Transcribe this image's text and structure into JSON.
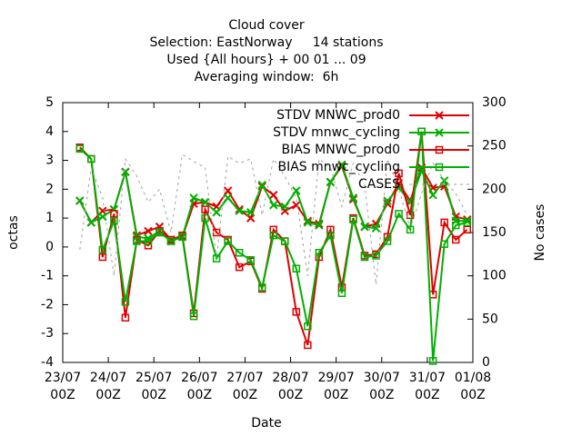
{
  "chart_data": {
    "type": "line",
    "title": [
      "Cloud cover",
      "Selection: EastNorway     14 stations",
      "Used {All hours} + 00 01 ... 09",
      "Averaging window:  6h"
    ],
    "xlabel": "Date",
    "ylabel": "octas",
    "y2label": "No cases",
    "x": [
      9,
      15,
      21,
      27,
      33,
      39,
      45,
      51,
      57,
      63,
      69,
      75,
      81,
      87,
      93,
      99,
      105,
      111,
      117,
      123,
      129,
      135,
      141,
      147,
      153,
      159,
      165,
      171,
      177,
      183,
      189,
      195,
      201,
      207,
      213
    ],
    "xlim": [
      0,
      216
    ],
    "xticks": [
      {
        "value": 0,
        "label": "23/07\n00Z"
      },
      {
        "value": 24,
        "label": "24/07\n00Z"
      },
      {
        "value": 48,
        "label": "25/07\n00Z"
      },
      {
        "value": 72,
        "label": "26/07\n00Z"
      },
      {
        "value": 96,
        "label": "27/07\n00Z"
      },
      {
        "value": 120,
        "label": "28/07\n00Z"
      },
      {
        "value": 144,
        "label": "29/07\n00Z"
      },
      {
        "value": 168,
        "label": "30/07\n00Z"
      },
      {
        "value": 192,
        "label": "31/07\n00Z"
      },
      {
        "value": 216,
        "label": "01/08\n00Z"
      }
    ],
    "ylim": [
      -4,
      5
    ],
    "yticks": [
      -4,
      -3,
      -2,
      -1,
      0,
      1,
      2,
      3,
      4,
      5
    ],
    "y2lim": [
      0,
      300
    ],
    "y2ticks": [
      0,
      50,
      100,
      150,
      200,
      250,
      300
    ],
    "grid": false,
    "legend": "top right",
    "series": [
      {
        "name": "STDV MNWC_prod0",
        "color": "#e00000",
        "marker": "x",
        "values": [
          1.6,
          0.85,
          1.25,
          1.3,
          2.6,
          0.4,
          0.55,
          0.7,
          0.25,
          0.35,
          1.5,
          1.55,
          1.4,
          1.95,
          1.3,
          1.0,
          2.1,
          1.8,
          1.25,
          1.45,
          0.9,
          0.8,
          2.25,
          2.8,
          1.65,
          0.7,
          0.8,
          1.5,
          2.2,
          1.6,
          2.75,
          2.05,
          2.1,
          1.05,
          0.95
        ]
      },
      {
        "name": "STDV mnwc_cycling",
        "color": "#00b000",
        "marker": "x",
        "values": [
          1.6,
          0.85,
          1.05,
          1.3,
          2.6,
          0.35,
          0.3,
          0.55,
          0.2,
          0.35,
          1.7,
          1.55,
          1.2,
          1.7,
          1.25,
          1.2,
          2.15,
          1.45,
          1.4,
          1.95,
          0.85,
          0.75,
          2.25,
          2.85,
          1.7,
          0.7,
          0.65,
          1.6,
          2.05,
          1.55,
          2.65,
          1.8,
          2.3,
          0.9,
          0.9
        ]
      },
      {
        "name": "BIAS MNWC_prod0",
        "color": "#e00000",
        "marker": "square",
        "values": [
          3.45,
          3.05,
          -0.35,
          1.15,
          -2.45,
          0.25,
          0.05,
          0.55,
          0.25,
          0.4,
          -2.3,
          1.3,
          0.5,
          0.25,
          -0.7,
          -0.5,
          -1.45,
          0.6,
          0.2,
          -2.25,
          -3.4,
          -0.35,
          0.6,
          -1.4,
          1.0,
          -0.3,
          -0.25,
          0.35,
          2.55,
          1.1,
          4.0,
          -1.65,
          0.85,
          0.25,
          0.6
        ]
      },
      {
        "name": "BIAS mnwc_cycling",
        "color": "#00b000",
        "marker": "square",
        "values": [
          3.4,
          3.05,
          -0.1,
          0.9,
          -1.9,
          0.2,
          0.2,
          0.5,
          0.2,
          0.35,
          -2.4,
          1.0,
          -0.4,
          0.2,
          -0.2,
          -0.45,
          -1.4,
          0.4,
          0.2,
          -0.75,
          -2.75,
          -0.2,
          0.4,
          -1.6,
          0.95,
          -0.35,
          -0.3,
          0.2,
          1.15,
          0.6,
          4.0,
          -3.95,
          0.1,
          0.75,
          0.85
        ]
      },
      {
        "name": "CASES",
        "color": "#a0a0a0",
        "marker": "none",
        "dashed": true,
        "axis": "y2",
        "values": [
          130,
          225,
          190,
          100,
          235,
          215,
          185,
          200,
          150,
          240,
          232,
          225,
          120,
          238,
          230,
          235,
          170,
          235,
          215,
          190,
          100,
          235,
          225,
          180,
          230,
          205,
          90,
          235,
          200,
          155,
          195,
          230,
          210,
          195,
          170
        ]
      }
    ]
  }
}
